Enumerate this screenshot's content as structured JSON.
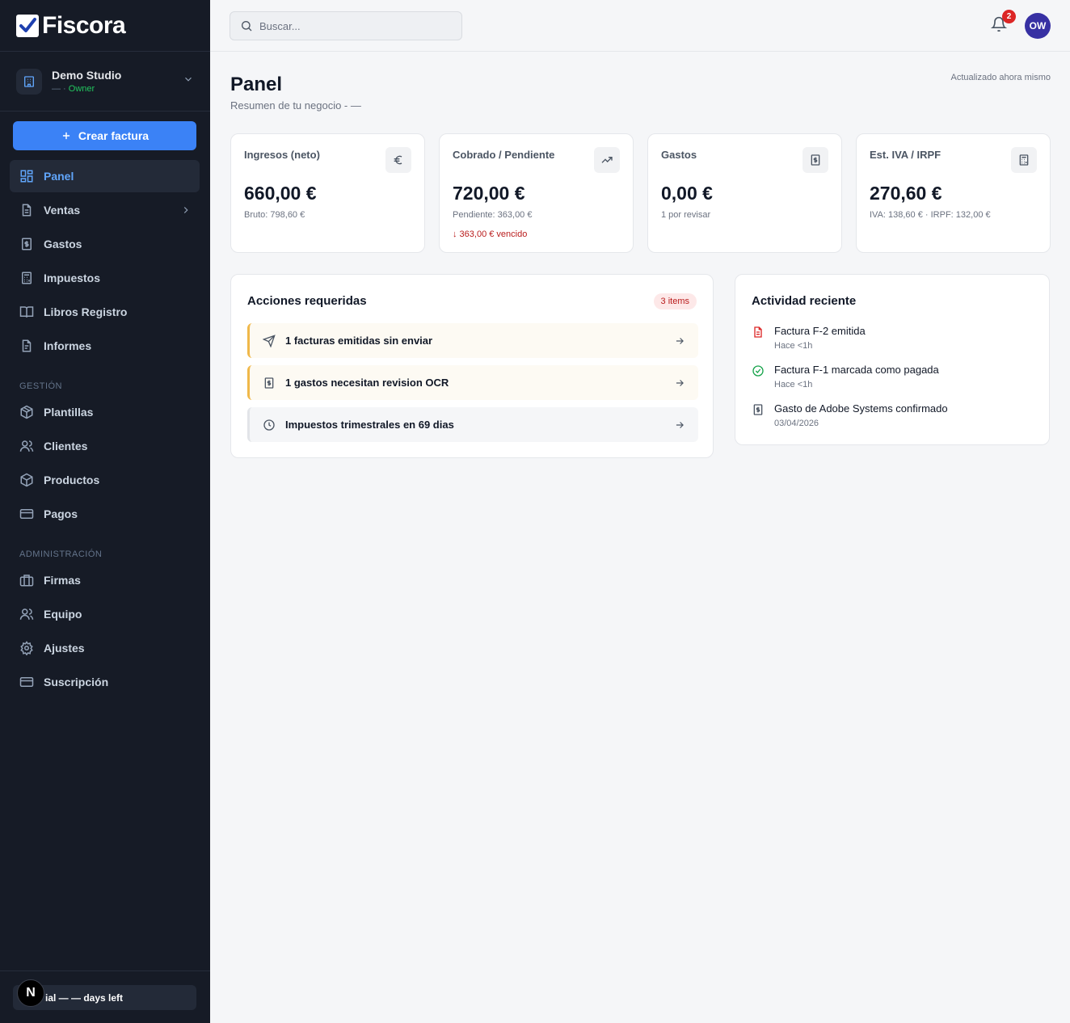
{
  "app": {
    "name": "Fiscora"
  },
  "org": {
    "name": "Demo Studio",
    "role_prefix": "— · ",
    "role": "Owner"
  },
  "sidebar": {
    "create_label": "Crear factura",
    "items": [
      {
        "label": "Panel"
      },
      {
        "label": "Ventas"
      },
      {
        "label": "Gastos"
      },
      {
        "label": "Impuestos"
      },
      {
        "label": "Libros Registro"
      },
      {
        "label": "Informes"
      }
    ],
    "section_gestion": "GESTIÓN",
    "gestion_items": [
      {
        "label": "Plantillas"
      },
      {
        "label": "Clientes"
      },
      {
        "label": "Productos"
      },
      {
        "label": "Pagos"
      }
    ],
    "section_admin": "ADMINISTRACIÓN",
    "admin_items": [
      {
        "label": "Firmas"
      },
      {
        "label": "Equipo"
      },
      {
        "label": "Ajustes"
      },
      {
        "label": "Suscripción"
      }
    ],
    "trial_text": "ial — — days left",
    "n_badge": "N"
  },
  "topbar": {
    "search_placeholder": "Buscar...",
    "notifications_count": "2",
    "avatar_initials": "OW"
  },
  "page": {
    "title": "Panel",
    "subtitle": "Resumen de tu negocio - —",
    "updated": "Actualizado ahora mismo"
  },
  "cards": [
    {
      "label": "Ingresos (neto)",
      "value": "660,00 €",
      "sub": "Bruto: 798,60 €",
      "icon": "euro-icon"
    },
    {
      "label": "Cobrado / Pendiente",
      "value": "720,00 €",
      "sub": "Pendiente: 363,00 €",
      "alert": "↓ 363,00 € vencido",
      "icon": "trending-up-icon"
    },
    {
      "label": "Gastos",
      "value": "0,00 €",
      "sub": "1 por revisar",
      "icon": "receipt-icon"
    },
    {
      "label": "Est. IVA / IRPF",
      "value": "270,60 €",
      "sub": "IVA: 138,60 € · IRPF: 132,00 €",
      "icon": "calculator-icon"
    }
  ],
  "actions": {
    "title": "Acciones requeridas",
    "badge": "3 items",
    "items": [
      {
        "label": "1 facturas emitidas sin enviar",
        "icon": "send-icon",
        "tone": "warning"
      },
      {
        "label": "1 gastos necesitan revision OCR",
        "icon": "receipt-icon",
        "tone": "warning"
      },
      {
        "label": "Impuestos trimestrales en 69 dias",
        "icon": "clock-icon",
        "tone": "neutral"
      }
    ]
  },
  "activity": {
    "title": "Actividad reciente",
    "items": [
      {
        "title": "Factura F-2 emitida",
        "time": "Hace <1h",
        "icon": "file-icon",
        "color": "#dc2626"
      },
      {
        "title": "Factura F-1 marcada como pagada",
        "time": "Hace <1h",
        "icon": "check-circle-icon",
        "color": "#16a34a"
      },
      {
        "title": "Gasto de Adobe Systems confirmado",
        "time": "03/04/2026",
        "icon": "receipt-icon",
        "color": "#4b5563"
      }
    ]
  },
  "colors": {
    "sidebar_bg": "#161b26",
    "accent": "#3b82f6",
    "danger": "#dc2626",
    "success": "#16a34a",
    "warning_border": "#f0b84a"
  }
}
